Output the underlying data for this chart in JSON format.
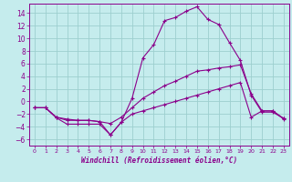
{
  "xlabel": "Windchill (Refroidissement éolien,°C)",
  "bg_color": "#c5eced",
  "grid_color": "#9dcfcf",
  "line_color": "#8b008b",
  "xlim": [
    -0.5,
    23.5
  ],
  "ylim": [
    -7,
    15.5
  ],
  "yticks": [
    -6,
    -4,
    -2,
    0,
    2,
    4,
    6,
    8,
    10,
    12,
    14
  ],
  "xticks": [
    0,
    1,
    2,
    3,
    4,
    5,
    6,
    7,
    8,
    9,
    10,
    11,
    12,
    13,
    14,
    15,
    16,
    17,
    18,
    19,
    20,
    21,
    22,
    23
  ],
  "curve1_x": [
    0,
    1,
    2,
    3,
    4,
    5,
    6,
    7,
    8,
    9,
    10,
    11,
    12,
    13,
    14,
    15,
    16,
    17,
    18,
    19,
    20,
    21,
    22,
    23
  ],
  "curve1_y": [
    -1.0,
    -1.0,
    -2.6,
    -3.6,
    -3.6,
    -3.6,
    -3.6,
    -5.3,
    -3.3,
    0.5,
    6.9,
    9.0,
    12.8,
    13.3,
    14.3,
    15.0,
    13.0,
    12.2,
    9.3,
    6.5,
    1.0,
    -1.7,
    -1.7,
    -2.7
  ],
  "curve2_x": [
    0,
    1,
    2,
    3,
    4,
    5,
    6,
    7,
    8,
    9,
    10,
    11,
    12,
    13,
    14,
    15,
    16,
    17,
    18,
    19,
    20,
    21,
    22,
    23
  ],
  "curve2_y": [
    -1.0,
    -1.0,
    -2.5,
    -2.8,
    -3.0,
    -3.0,
    -3.2,
    -3.5,
    -2.5,
    -1.0,
    0.5,
    1.5,
    2.5,
    3.2,
    4.0,
    4.8,
    5.0,
    5.3,
    5.5,
    5.8,
    1.2,
    -1.5,
    -1.5,
    -2.7
  ],
  "curve3_x": [
    0,
    1,
    2,
    3,
    4,
    5,
    6,
    7,
    8,
    9,
    10,
    11,
    12,
    13,
    14,
    15,
    16,
    17,
    18,
    19,
    20,
    21,
    22,
    23
  ],
  "curve3_y": [
    -1.0,
    -1.0,
    -2.5,
    -3.0,
    -3.0,
    -3.0,
    -3.2,
    -5.3,
    -3.3,
    -2.0,
    -1.5,
    -1.0,
    -0.5,
    0.0,
    0.5,
    1.0,
    1.5,
    2.0,
    2.5,
    3.0,
    -2.5,
    -1.5,
    -1.5,
    -2.8
  ]
}
